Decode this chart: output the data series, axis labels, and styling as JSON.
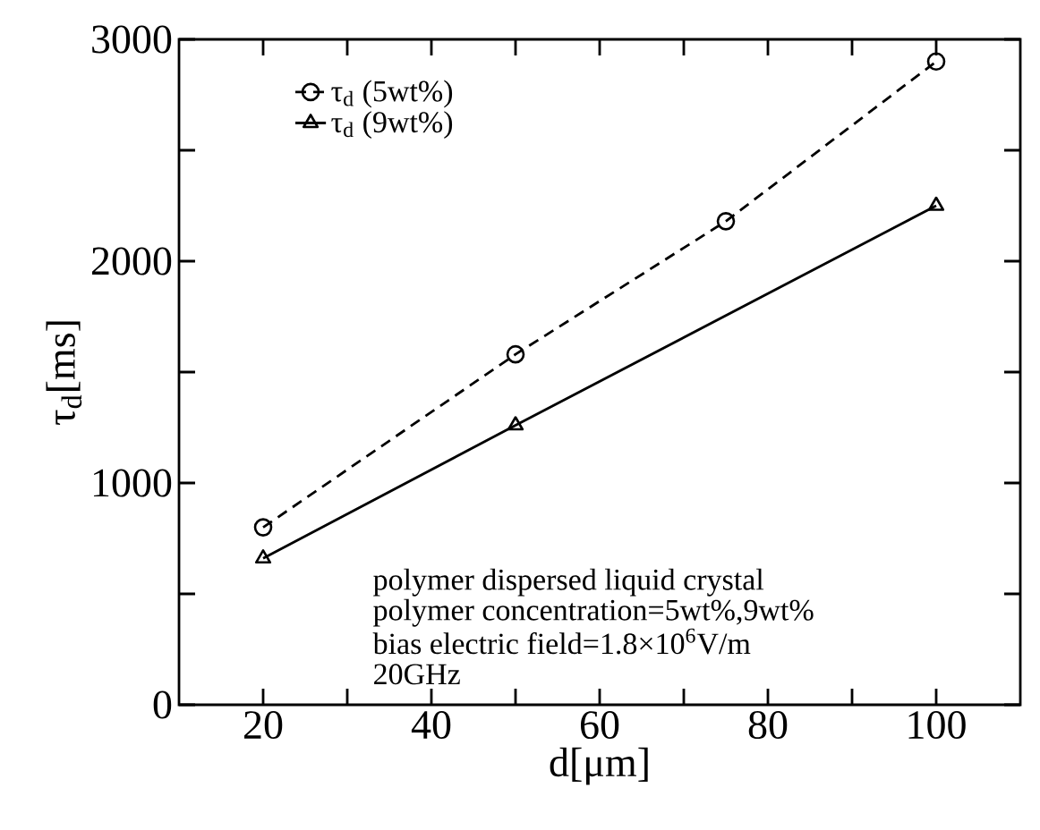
{
  "chart_data": {
    "type": "line",
    "xlabel": "d[μm]",
    "ylabel": "τ$_{d}$[ms]",
    "series": [
      {
        "name": "τ$_{d}$ (5wt%)",
        "color": "#000000",
        "marker": "circle",
        "line_style": "dashed",
        "x": [
          20,
          50,
          75,
          100
        ],
        "values": [
          800,
          1580,
          2180,
          2900
        ]
      },
      {
        "name": "τ$_{d}$ (9wt%)",
        "color": "#000000",
        "marker": "triangle",
        "line_style": "solid",
        "x": [
          20,
          50,
          100
        ],
        "values": [
          660,
          1260,
          2250
        ]
      }
    ],
    "xlim": [
      10,
      110
    ],
    "ylim": [
      0,
      3000
    ],
    "xticks": [
      20,
      {
        "value": 30,
        "label": null
      },
      40,
      {
        "value": 50,
        "label": null
      },
      60,
      {
        "value": 70,
        "label": null
      },
      80,
      {
        "value": 90,
        "label": null
      },
      100
    ],
    "yticks": [
      0,
      {
        "value": 500,
        "label": null
      },
      1000,
      {
        "value": 1500,
        "label": null
      },
      2000,
      {
        "value": 2500,
        "label": null
      },
      3000
    ],
    "legend": "top left",
    "grid": false,
    "annotations": [
      "polymer dispersed liquid crystal",
      "polymer concentration=5wt%,9wt%",
      "bias electric field=1.8×10$^{6}$V/m",
      "20GHz"
    ]
  }
}
